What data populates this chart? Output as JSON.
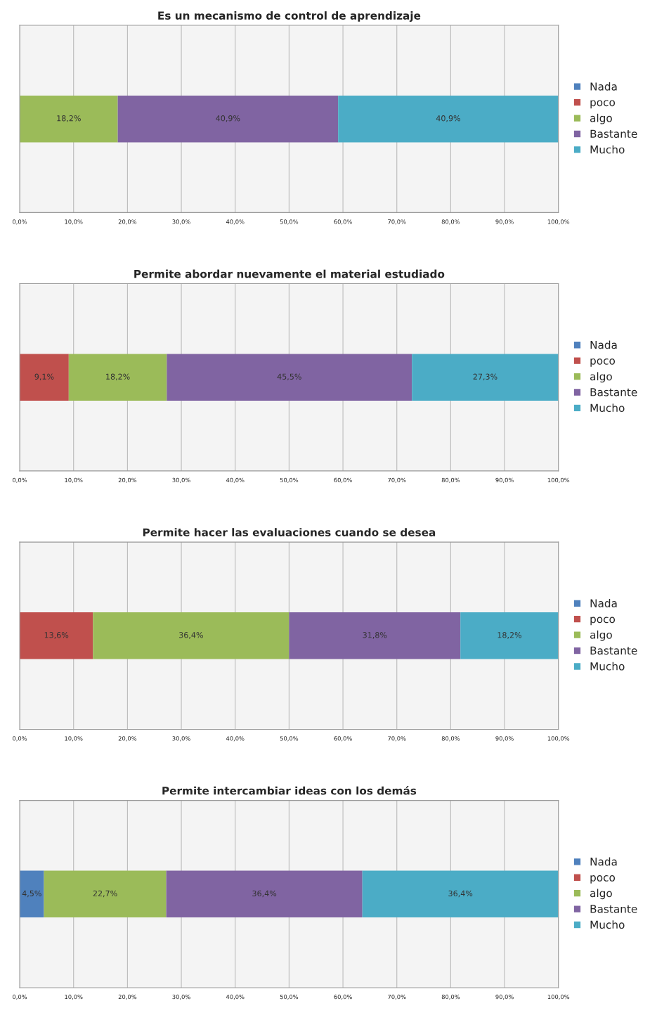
{
  "chart_data": [
    {
      "type": "bar",
      "orientation": "horizontal",
      "stacked": true,
      "title": "Es un mecanismo de control de aprendizaje",
      "categories": [
        null
      ],
      "xlim": [
        0,
        100
      ],
      "xticks": [
        {
          "value": 0,
          "label": "0,0%"
        },
        {
          "value": 10,
          "label": "10,0%"
        },
        {
          "value": 20,
          "label": "20,0%"
        },
        {
          "value": 30,
          "label": "30,0%"
        },
        {
          "value": 40,
          "label": "40,0%"
        },
        {
          "value": 50,
          "label": "50,0%"
        },
        {
          "value": 60,
          "label": "60,0%"
        },
        {
          "value": 70,
          "label": "70,0%"
        },
        {
          "value": 80,
          "label": "80,0%"
        },
        {
          "value": 90,
          "label": "90,0%"
        },
        {
          "value": 100,
          "label": "100,0%"
        }
      ],
      "grid": "x",
      "legend": "right",
      "series": [
        {
          "name": "Nada",
          "color": "#4f81bd",
          "values": [
            0
          ],
          "value_labels": [
            null
          ]
        },
        {
          "name": "poco",
          "color": "#c0504d",
          "values": [
            0
          ],
          "value_labels": [
            null
          ]
        },
        {
          "name": "algo",
          "color": "#9bbb59",
          "values": [
            18.2
          ],
          "value_labels": [
            "18,2%"
          ]
        },
        {
          "name": "Bastante",
          "color": "#8064a2",
          "values": [
            40.9
          ],
          "value_labels": [
            "40,9%"
          ]
        },
        {
          "name": "Mucho",
          "color": "#4bacc6",
          "values": [
            40.9
          ],
          "value_labels": [
            "40,9%"
          ]
        }
      ]
    },
    {
      "type": "bar",
      "orientation": "horizontal",
      "stacked": true,
      "title": "Permite abordar nuevamente el material estudiado",
      "categories": [
        null
      ],
      "xlim": [
        0,
        100
      ],
      "xticks": [
        {
          "value": 0,
          "label": "0,0%"
        },
        {
          "value": 10,
          "label": "10,0%"
        },
        {
          "value": 20,
          "label": "20,0%"
        },
        {
          "value": 30,
          "label": "30,0%"
        },
        {
          "value": 40,
          "label": "40,0%"
        },
        {
          "value": 50,
          "label": "50,0%"
        },
        {
          "value": 60,
          "label": "60,0%"
        },
        {
          "value": 70,
          "label": "70,0%"
        },
        {
          "value": 80,
          "label": "80,0%"
        },
        {
          "value": 90,
          "label": "90,0%"
        },
        {
          "value": 100,
          "label": "100,0%"
        }
      ],
      "grid": "x",
      "legend": "right",
      "series": [
        {
          "name": "Nada",
          "color": "#4f81bd",
          "values": [
            0
          ],
          "value_labels": [
            null
          ]
        },
        {
          "name": "poco",
          "color": "#c0504d",
          "values": [
            9.1
          ],
          "value_labels": [
            "9,1%"
          ]
        },
        {
          "name": "algo",
          "color": "#9bbb59",
          "values": [
            18.2
          ],
          "value_labels": [
            "18,2%"
          ]
        },
        {
          "name": "Bastante",
          "color": "#8064a2",
          "values": [
            45.5
          ],
          "value_labels": [
            "45,5%"
          ]
        },
        {
          "name": "Mucho",
          "color": "#4bacc6",
          "values": [
            27.3
          ],
          "value_labels": [
            "27,3%"
          ]
        }
      ]
    },
    {
      "type": "bar",
      "orientation": "horizontal",
      "stacked": true,
      "title": "Permite hacer las evaluaciones cuando se desea",
      "categories": [
        null
      ],
      "xlim": [
        0,
        100
      ],
      "xticks": [
        {
          "value": 0,
          "label": "0,0%"
        },
        {
          "value": 10,
          "label": "10,0%"
        },
        {
          "value": 20,
          "label": "20,0%"
        },
        {
          "value": 30,
          "label": "30,0%"
        },
        {
          "value": 40,
          "label": "40,0%"
        },
        {
          "value": 50,
          "label": "50,0%"
        },
        {
          "value": 60,
          "label": "60,0%"
        },
        {
          "value": 70,
          "label": "70,0%"
        },
        {
          "value": 80,
          "label": "80,0%"
        },
        {
          "value": 90,
          "label": "90,0%"
        },
        {
          "value": 100,
          "label": "100,0%"
        }
      ],
      "grid": "x",
      "legend": "right",
      "series": [
        {
          "name": "Nada",
          "color": "#4f81bd",
          "values": [
            0
          ],
          "value_labels": [
            null
          ]
        },
        {
          "name": "poco",
          "color": "#c0504d",
          "values": [
            13.6
          ],
          "value_labels": [
            "13,6%"
          ]
        },
        {
          "name": "algo",
          "color": "#9bbb59",
          "values": [
            36.4
          ],
          "value_labels": [
            "36,4%"
          ]
        },
        {
          "name": "Bastante",
          "color": "#8064a2",
          "values": [
            31.8
          ],
          "value_labels": [
            "31,8%"
          ]
        },
        {
          "name": "Mucho",
          "color": "#4bacc6",
          "values": [
            18.2
          ],
          "value_labels": [
            "18,2%"
          ]
        }
      ]
    },
    {
      "type": "bar",
      "orientation": "horizontal",
      "stacked": true,
      "title": "Permite intercambiar ideas con los demás",
      "categories": [
        null
      ],
      "xlim": [
        0,
        100
      ],
      "xticks": [
        {
          "value": 0,
          "label": "0,0%"
        },
        {
          "value": 10,
          "label": "10,0%"
        },
        {
          "value": 20,
          "label": "20,0%"
        },
        {
          "value": 30,
          "label": "30,0%"
        },
        {
          "value": 40,
          "label": "40,0%"
        },
        {
          "value": 50,
          "label": "50,0%"
        },
        {
          "value": 60,
          "label": "60,0%"
        },
        {
          "value": 70,
          "label": "70,0%"
        },
        {
          "value": 80,
          "label": "80,0%"
        },
        {
          "value": 90,
          "label": "90,0%"
        },
        {
          "value": 100,
          "label": "100,0%"
        }
      ],
      "grid": "x",
      "legend": "right",
      "series": [
        {
          "name": "Nada",
          "color": "#4f81bd",
          "values": [
            4.5
          ],
          "value_labels": [
            "4,5%"
          ]
        },
        {
          "name": "poco",
          "color": "#c0504d",
          "values": [
            0
          ],
          "value_labels": [
            null
          ]
        },
        {
          "name": "algo",
          "color": "#9bbb59",
          "values": [
            22.7
          ],
          "value_labels": [
            "22,7%"
          ]
        },
        {
          "name": "Bastante",
          "color": "#8064a2",
          "values": [
            36.4
          ],
          "value_labels": [
            "36,4%"
          ]
        },
        {
          "name": "Mucho",
          "color": "#4bacc6",
          "values": [
            36.4
          ],
          "value_labels": [
            "36,4%"
          ]
        }
      ]
    }
  ]
}
